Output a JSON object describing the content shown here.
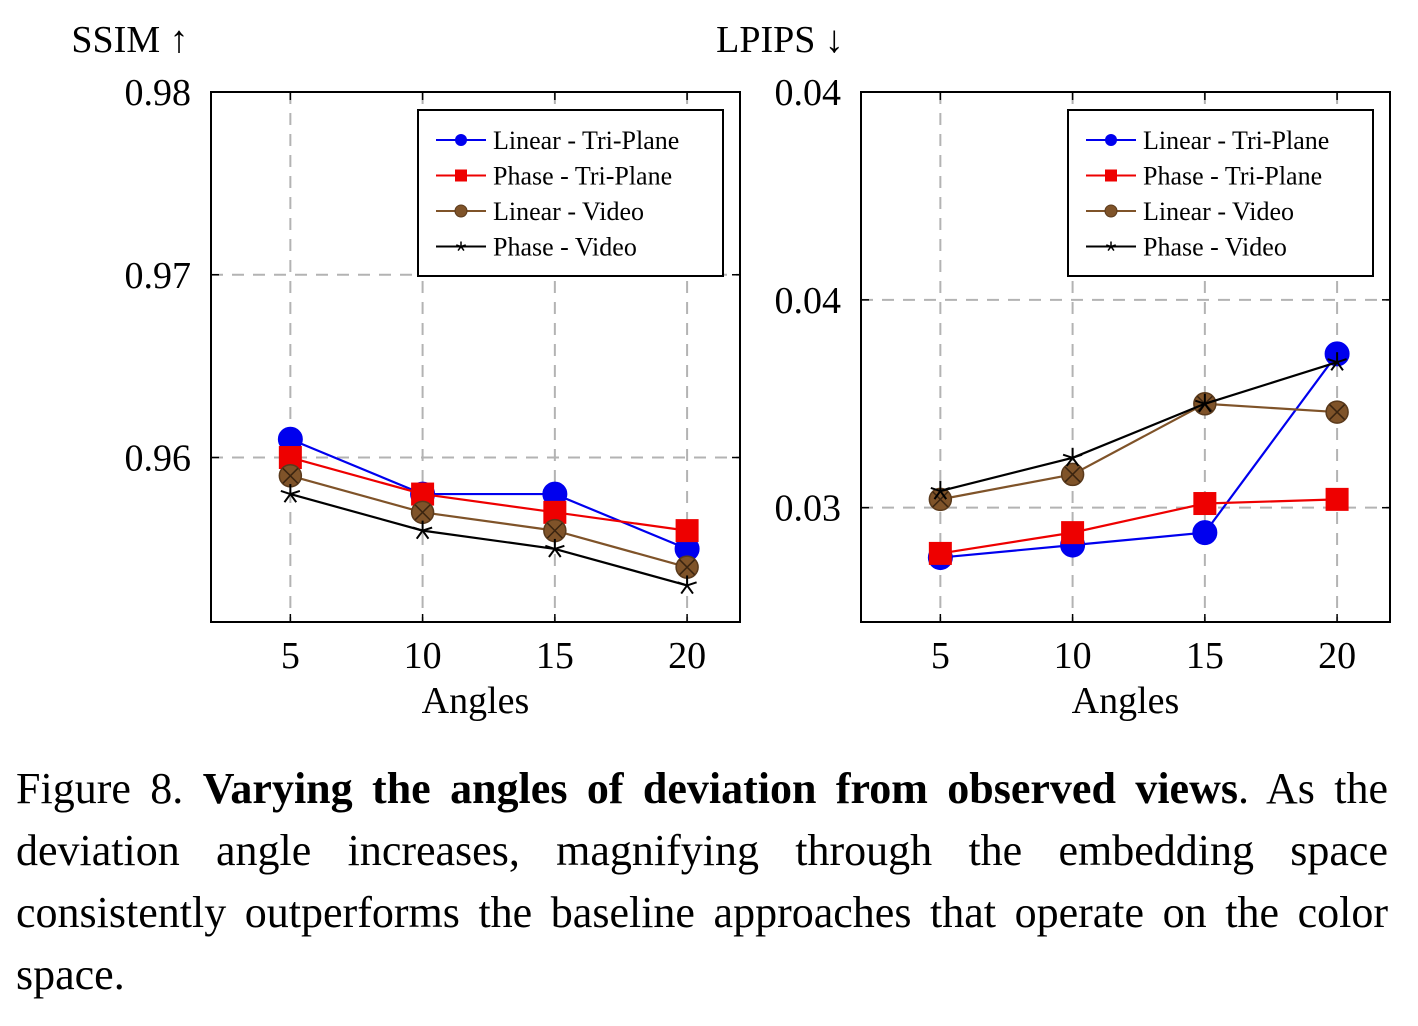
{
  "chart_data": [
    {
      "type": "line",
      "ylabel": "SSIM ↑",
      "xlabel": "Angles",
      "x": [
        5,
        10,
        15,
        20
      ],
      "xticks": [
        "5",
        "10",
        "15",
        "20"
      ],
      "yticks": [
        "0.96",
        "0.97",
        "0.98"
      ],
      "xlim": [
        2,
        22
      ],
      "ylim": [
        0.951,
        0.98
      ],
      "grid": true,
      "legend_position": "top-right",
      "series": [
        {
          "name": "Linear - Tri-Plane",
          "color": "#0000ee",
          "marker": "circle",
          "values": [
            0.961,
            0.958,
            0.958,
            0.955
          ]
        },
        {
          "name": "Phase - Tri-Plane",
          "color": "#ee0000",
          "marker": "square",
          "values": [
            0.96,
            0.958,
            0.957,
            0.956
          ]
        },
        {
          "name": "Linear - Video",
          "color": "#7f5329",
          "marker": "circle-x",
          "values": [
            0.959,
            0.957,
            0.956,
            0.954
          ]
        },
        {
          "name": "Phase - Video",
          "color": "#000000",
          "marker": "star",
          "values": [
            0.958,
            0.956,
            0.955,
            0.953
          ]
        }
      ]
    },
    {
      "type": "line",
      "ylabel": "LPIPS ↓",
      "xlabel": "Angles",
      "x": [
        5,
        10,
        15,
        20
      ],
      "xticks": [
        "5",
        "10",
        "15",
        "20"
      ],
      "yticks": [
        "0.03",
        "0.04",
        "0.04"
      ],
      "ytick_values": [
        0.03,
        0.035,
        0.04
      ],
      "xlim": [
        2,
        22
      ],
      "ylim": [
        0.02725,
        0.04
      ],
      "grid": true,
      "legend_position": "top-right",
      "series": [
        {
          "name": "Linear - Tri-Plane",
          "color": "#0000ee",
          "marker": "circle",
          "values": [
            0.0288,
            0.0291,
            0.0294,
            0.0337
          ]
        },
        {
          "name": "Phase - Tri-Plane",
          "color": "#ee0000",
          "marker": "square",
          "values": [
            0.0289,
            0.0294,
            0.0301,
            0.0302
          ]
        },
        {
          "name": "Linear - Video",
          "color": "#7f5329",
          "marker": "circle-x",
          "values": [
            0.0302,
            0.0308,
            0.0325,
            0.0323
          ]
        },
        {
          "name": "Phase - Video",
          "color": "#000000",
          "marker": "star",
          "values": [
            0.0304,
            0.0312,
            0.0325,
            0.0335
          ]
        }
      ]
    }
  ],
  "caption": {
    "label": "Figure 8.",
    "title": "Varying the angles of deviation from observed views",
    "period": ".",
    "text": "As the deviation angle increases, magnifying through the embedding space consistently outperforms the baseline approaches that operate on the color space."
  }
}
